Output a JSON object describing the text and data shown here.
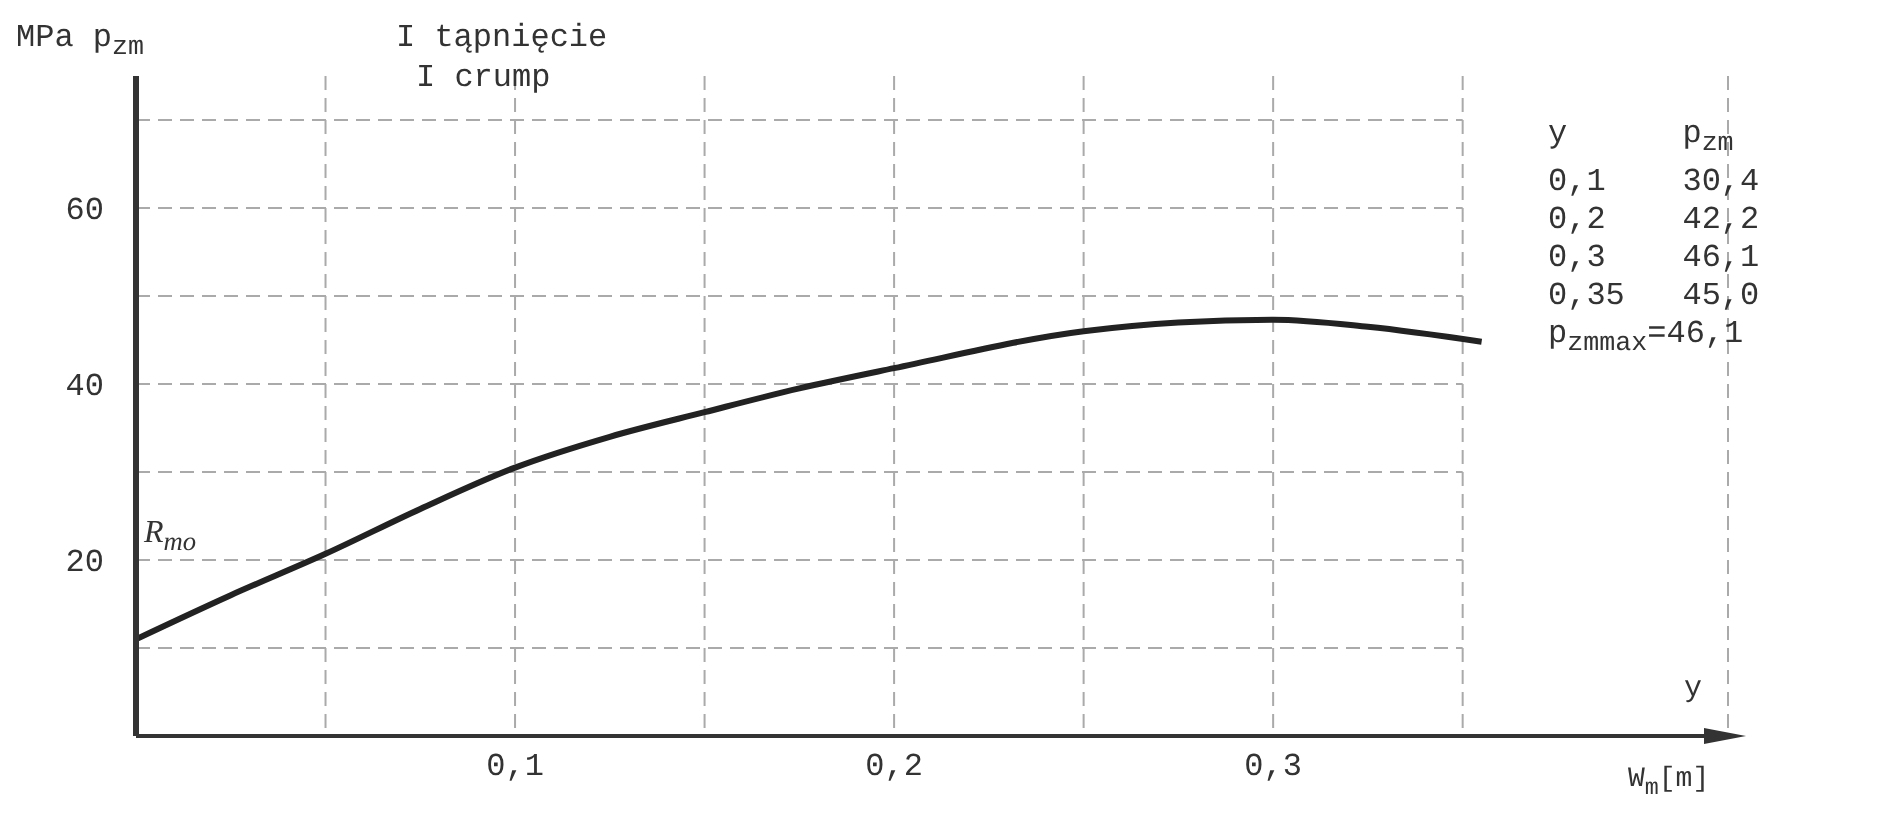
{
  "chart_data": {
    "type": "line",
    "title": "I tąpnięcie",
    "subtitle": "I crump",
    "ylabel": "MPa  p$_{zm}$",
    "xlabel": "W$_{m}$[m]",
    "x": [
      0,
      0.025,
      0.05,
      0.075,
      0.1,
      0.125,
      0.15,
      0.175,
      0.2,
      0.25,
      0.275,
      0.3,
      0.325,
      0.355
    ],
    "series": [
      {
        "color": "#222222",
        "values": [
          11,
          16,
          20.7,
          25.8,
          30.5,
          34,
          36.8,
          39.5,
          41.8,
          46,
          47,
          47.3,
          46.5,
          44.8
        ]
      }
    ],
    "xlim": [
      0,
      0.42
    ],
    "xticks": [
      {
        "value": 0.05,
        "label": null
      },
      {
        "value": 0.1,
        "label": "0,1"
      },
      {
        "value": 0.15,
        "label": null
      },
      {
        "value": 0.2,
        "label": "0,2"
      },
      {
        "value": 0.25,
        "label": null
      },
      {
        "value": 0.3,
        "label": "0,3"
      },
      {
        "value": 0.35,
        "label": null
      }
    ],
    "ylim": [
      0,
      75
    ],
    "yticks": [
      {
        "value": 10,
        "label": null
      },
      20,
      {
        "value": 30,
        "label": null
      },
      40,
      {
        "value": 50,
        "label": null
      },
      60,
      {
        "value": 70,
        "label": null
      }
    ],
    "grid": true,
    "marker": "none",
    "line_style": "solid",
    "annotations": [
      "y",
      "R$_{mo}$",
      "y      p$_{zm}$",
      "0,1    30,4",
      "0,2    42,2",
      "0,3    46,1",
      "0,35   45,0",
      "p$_{zmmax}$=46,1"
    ]
  }
}
